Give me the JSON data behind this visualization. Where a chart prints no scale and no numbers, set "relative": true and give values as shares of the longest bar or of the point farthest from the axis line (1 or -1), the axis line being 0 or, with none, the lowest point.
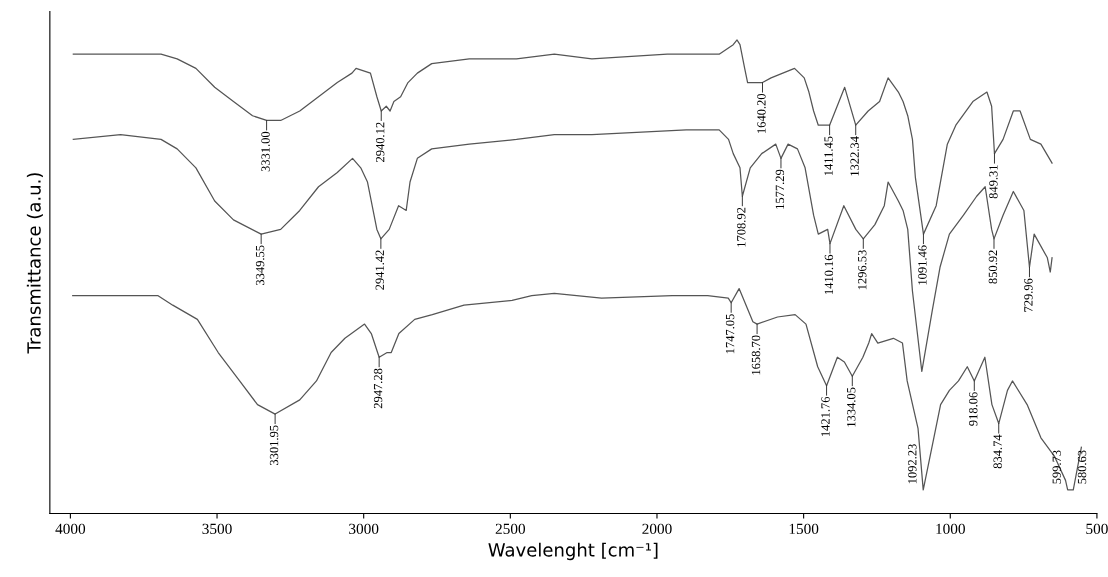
{
  "chart_data": {
    "type": "line",
    "relative": true,
    "xlabel": "Wavelenght [cm⁻¹]",
    "ylabel": "Transmittance (a.u.)",
    "xlim": [
      4070,
      500
    ],
    "xticks": [
      4000,
      3500,
      3000,
      2500,
      2000,
      1500,
      1000,
      500
    ],
    "tick_labels": "x",
    "line_style": "solid",
    "series": [
      {
        "color": "#555555",
        "x": [
          3990,
          3691,
          3636,
          3572,
          3508,
          3444,
          3379,
          3331,
          3283,
          3218,
          3154,
          3090,
          3040,
          3026,
          2977,
          2955,
          2940.12,
          2923,
          2910,
          2897,
          2874,
          2849,
          2817,
          2768,
          2640,
          2479,
          2350,
          2222,
          1965,
          1788,
          1740,
          1727,
          1717,
          1701,
          1691,
          1640.2,
          1611,
          1531,
          1498,
          1482,
          1466,
          1450,
          1411.45,
          1360,
          1322.34,
          1280,
          1241,
          1212,
          1177,
          1161,
          1145,
          1129,
          1119,
          1091.46,
          1048,
          1010,
          981,
          923,
          875,
          859,
          849.31,
          820,
          785,
          762,
          727,
          691,
          653
        ],
        "values": [
          0.97,
          0.97,
          0.96,
          0.94,
          0.9,
          0.87,
          0.84,
          0.83,
          0.83,
          0.85,
          0.88,
          0.91,
          0.93,
          0.94,
          0.93,
          0.88,
          0.85,
          0.86,
          0.85,
          0.87,
          0.88,
          0.91,
          0.93,
          0.95,
          0.96,
          0.96,
          0.97,
          0.96,
          0.97,
          0.97,
          0.99,
          1.0,
          0.99,
          0.94,
          0.91,
          0.91,
          0.92,
          0.94,
          0.92,
          0.89,
          0.85,
          0.82,
          0.82,
          0.9,
          0.82,
          0.85,
          0.87,
          0.92,
          0.89,
          0.87,
          0.84,
          0.79,
          0.71,
          0.59,
          0.65,
          0.78,
          0.82,
          0.87,
          0.89,
          0.86,
          0.76,
          0.79,
          0.85,
          0.85,
          0.79,
          0.78,
          0.74
        ]
      },
      {
        "color": "#555555",
        "x": [
          3990,
          3829,
          3691,
          3636,
          3572,
          3508,
          3444,
          3349.55,
          3283,
          3218,
          3154,
          3090,
          3038,
          3010,
          2987,
          2955,
          2941.42,
          2913,
          2881,
          2855,
          2842,
          2817,
          2768,
          2640,
          2479,
          2350,
          2222,
          1900,
          1788,
          1756,
          1740,
          1717,
          1708.92,
          1682,
          1643,
          1595,
          1577.29,
          1553,
          1521,
          1495,
          1466,
          1450,
          1418,
          1410.16,
          1363,
          1322,
          1296.53,
          1257,
          1225,
          1212,
          1177,
          1161,
          1145,
          1129,
          1097,
          1061,
          1035,
          1003,
          955,
          910,
          881,
          859,
          850.92,
          820,
          785,
          749,
          729.96,
          714,
          669,
          659,
          653
        ],
        "values": [
          0.79,
          0.8,
          0.79,
          0.77,
          0.73,
          0.66,
          0.62,
          0.59,
          0.6,
          0.64,
          0.69,
          0.72,
          0.75,
          0.73,
          0.7,
          0.6,
          0.58,
          0.6,
          0.65,
          0.64,
          0.7,
          0.75,
          0.77,
          0.78,
          0.79,
          0.8,
          0.8,
          0.81,
          0.81,
          0.79,
          0.76,
          0.73,
          0.67,
          0.73,
          0.76,
          0.78,
          0.75,
          0.78,
          0.77,
          0.73,
          0.63,
          0.59,
          0.6,
          0.57,
          0.65,
          0.6,
          0.58,
          0.61,
          0.65,
          0.7,
          0.66,
          0.64,
          0.6,
          0.47,
          0.3,
          0.43,
          0.52,
          0.59,
          0.63,
          0.67,
          0.69,
          0.6,
          0.58,
          0.63,
          0.68,
          0.64,
          0.52,
          0.59,
          0.54,
          0.51,
          0.54
        ]
      },
      {
        "color": "#555555",
        "x": [
          3992,
          3902,
          3701,
          3651,
          3567,
          3496,
          3423,
          3362,
          3301.95,
          3218,
          3161,
          3111,
          3064,
          2997,
          2974,
          2947.28,
          2920,
          2906,
          2880,
          2826,
          2766,
          2658,
          2494,
          2427,
          2350,
          2189,
          1948,
          1827,
          1757,
          1747.05,
          1720,
          1703,
          1673,
          1658.7,
          1589,
          1529,
          1492,
          1452,
          1421.76,
          1385,
          1361,
          1334.05,
          1298,
          1278,
          1268,
          1247,
          1194,
          1163,
          1147,
          1110,
          1092.23,
          1056,
          1033,
          1003,
          972,
          942,
          918.06,
          882,
          858,
          834.74,
          805,
          788,
          738,
          691,
          644,
          607,
          599.73,
          580.63,
          553
        ],
        "values": [
          0.46,
          0.46,
          0.46,
          0.44,
          0.41,
          0.34,
          0.28,
          0.23,
          0.21,
          0.24,
          0.28,
          0.34,
          0.37,
          0.4,
          0.38,
          0.33,
          0.34,
          0.34,
          0.38,
          0.41,
          0.42,
          0.44,
          0.45,
          0.46,
          0.465,
          0.455,
          0.46,
          0.46,
          0.455,
          0.445,
          0.475,
          0.45,
          0.405,
          0.4,
          0.415,
          0.42,
          0.4,
          0.31,
          0.27,
          0.33,
          0.32,
          0.29,
          0.33,
          0.36,
          0.38,
          0.36,
          0.37,
          0.36,
          0.28,
          0.18,
          0.05,
          0.16,
          0.23,
          0.26,
          0.28,
          0.31,
          0.28,
          0.33,
          0.23,
          0.19,
          0.26,
          0.28,
          0.23,
          0.16,
          0.12,
          0.07,
          0.05,
          0.05,
          0.14
        ]
      }
    ],
    "annotations": [
      {
        "text": "3331.00",
        "x": 3331,
        "y": 0.83
      },
      {
        "text": "2940.12",
        "x": 2940.12,
        "y": 0.85
      },
      {
        "text": "1640.20",
        "x": 1640.2,
        "y": 0.91
      },
      {
        "text": "1411.45",
        "x": 1411.45,
        "y": 0.82
      },
      {
        "text": "1322.34",
        "x": 1322.34,
        "y": 0.82
      },
      {
        "text": "1091.46",
        "x": 1091.46,
        "y": 0.59
      },
      {
        "text": "849.31",
        "x": 849.31,
        "y": 0.76
      },
      {
        "text": "3349.55",
        "x": 3349.55,
        "y": 0.59
      },
      {
        "text": "2941.42",
        "x": 2941.42,
        "y": 0.58
      },
      {
        "text": "1708.92",
        "x": 1708.92,
        "y": 0.67
      },
      {
        "text": "1577.29",
        "x": 1577.29,
        "y": 0.75
      },
      {
        "text": "1410.16",
        "x": 1410.16,
        "y": 0.57
      },
      {
        "text": "1296.53",
        "x": 1296.53,
        "y": 0.58
      },
      {
        "text": "850.92",
        "x": 850.92,
        "y": 0.58
      },
      {
        "text": "729.96",
        "x": 729.96,
        "y": 0.52
      },
      {
        "text": "3301.95",
        "x": 3301.95,
        "y": 0.21
      },
      {
        "text": "2947.28",
        "x": 2947.28,
        "y": 0.33
      },
      {
        "text": "1747.05",
        "x": 1747.05,
        "y": 0.445
      },
      {
        "text": "1658.70",
        "x": 1658.7,
        "y": 0.4
      },
      {
        "text": "1421.76",
        "x": 1421.76,
        "y": 0.27
      },
      {
        "text": "1334.05",
        "x": 1334.05,
        "y": 0.29
      },
      {
        "text": "1092.23",
        "x": 1092.23,
        "y": 0.05
      },
      {
        "text": "918.06",
        "x": 918.06,
        "y": 0.28
      },
      {
        "text": "834.74",
        "x": 834.74,
        "y": 0.19
      },
      {
        "text": "599.73",
        "x": 599.73,
        "y": 0.05
      },
      {
        "text": "580.63",
        "x": 580.63,
        "y": 0.05
      }
    ]
  }
}
